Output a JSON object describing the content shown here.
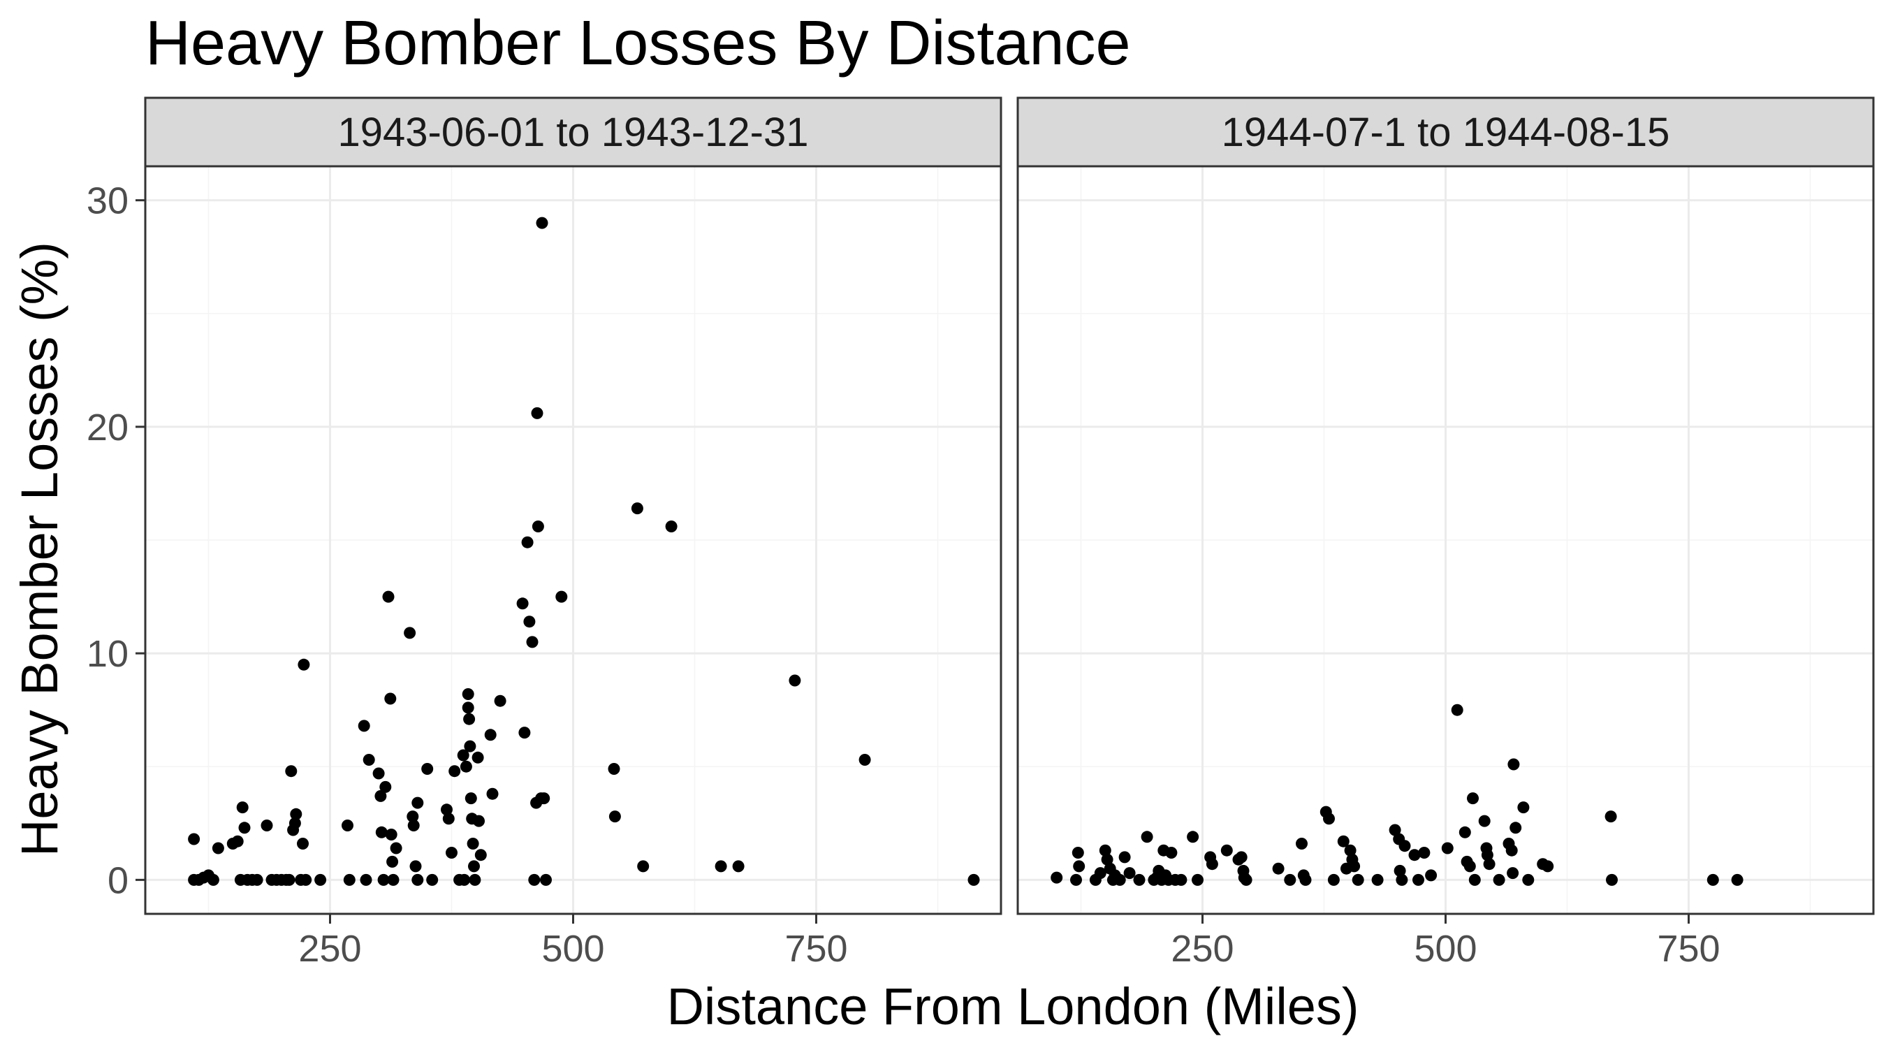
{
  "chart_data": {
    "type": "scatter",
    "title": "Heavy Bomber Losses By Distance",
    "xlabel": "Distance From London (Miles)",
    "ylabel": "Heavy Bomber Losses (%)",
    "xlim": [
      60,
      940
    ],
    "ylim": [
      -1.5,
      31.5
    ],
    "x_ticks": [
      250,
      500,
      750
    ],
    "y_ticks": [
      0,
      10,
      20,
      30
    ],
    "grid": true,
    "point_color": "#000000",
    "panels": [
      {
        "label": "1943-06-01 to 1943-12-31",
        "points": [
          [
            110,
            1.8
          ],
          [
            110,
            0
          ],
          [
            115,
            0
          ],
          [
            120,
            0.1
          ],
          [
            125,
            0.2
          ],
          [
            130,
            0
          ],
          [
            135,
            1.4
          ],
          [
            150,
            1.6
          ],
          [
            155,
            1.7
          ],
          [
            158,
            0
          ],
          [
            160,
            3.2
          ],
          [
            162,
            2.3
          ],
          [
            165,
            0
          ],
          [
            170,
            0
          ],
          [
            175,
            0
          ],
          [
            185,
            2.4
          ],
          [
            190,
            0
          ],
          [
            195,
            0
          ],
          [
            200,
            0
          ],
          [
            205,
            0
          ],
          [
            208,
            0
          ],
          [
            210,
            4.8
          ],
          [
            212,
            2.2
          ],
          [
            214,
            2.5
          ],
          [
            215,
            2.9
          ],
          [
            220,
            0
          ],
          [
            222,
            1.6
          ],
          [
            223,
            9.5
          ],
          [
            225,
            0
          ],
          [
            240,
            0
          ],
          [
            268,
            2.4
          ],
          [
            270,
            0
          ],
          [
            285,
            6.8
          ],
          [
            287,
            0
          ],
          [
            290,
            5.3
          ],
          [
            300,
            4.7
          ],
          [
            302,
            3.7
          ],
          [
            303,
            2.1
          ],
          [
            305,
            0
          ],
          [
            307,
            4.1
          ],
          [
            310,
            12.5
          ],
          [
            312,
            8.0
          ],
          [
            313,
            2.0
          ],
          [
            314,
            0.8
          ],
          [
            315,
            0
          ],
          [
            318,
            1.4
          ],
          [
            332,
            10.9
          ],
          [
            335,
            2.8
          ],
          [
            336,
            2.4
          ],
          [
            338,
            0.6
          ],
          [
            340,
            3.4
          ],
          [
            340,
            0
          ],
          [
            350,
            4.9
          ],
          [
            355,
            0
          ],
          [
            370,
            3.1
          ],
          [
            372,
            2.7
          ],
          [
            375,
            1.2
          ],
          [
            378,
            4.8
          ],
          [
            383,
            0
          ],
          [
            387,
            5.5
          ],
          [
            388,
            0
          ],
          [
            390,
            5.0
          ],
          [
            392,
            8.2
          ],
          [
            392,
            7.6
          ],
          [
            393,
            7.1
          ],
          [
            394,
            5.9
          ],
          [
            395,
            3.6
          ],
          [
            396,
            2.7
          ],
          [
            397,
            1.6
          ],
          [
            398,
            0.6
          ],
          [
            399,
            0
          ],
          [
            402,
            5.4
          ],
          [
            403,
            2.6
          ],
          [
            405,
            1.1
          ],
          [
            415,
            6.4
          ],
          [
            417,
            3.8
          ],
          [
            425,
            7.9
          ],
          [
            448,
            12.2
          ],
          [
            450,
            6.5
          ],
          [
            453,
            14.9
          ],
          [
            455,
            11.4
          ],
          [
            458,
            10.5
          ],
          [
            460,
            0
          ],
          [
            462,
            3.4
          ],
          [
            463,
            20.6
          ],
          [
            464,
            15.6
          ],
          [
            467,
            3.6
          ],
          [
            468,
            29.0
          ],
          [
            470,
            3.6
          ],
          [
            472,
            0
          ],
          [
            488,
            12.5
          ],
          [
            542,
            4.9
          ],
          [
            543,
            2.8
          ],
          [
            566,
            16.4
          ],
          [
            572,
            0.6
          ],
          [
            601,
            15.6
          ],
          [
            652,
            0.6
          ],
          [
            670,
            0.6
          ],
          [
            728,
            8.8
          ],
          [
            800,
            5.3
          ],
          [
            912,
            0
          ]
        ]
      },
      {
        "label": "1944-07-1 to 1944-08-15",
        "points": [
          [
            100,
            0.1
          ],
          [
            120,
            0
          ],
          [
            122,
            1.2
          ],
          [
            123,
            0.6
          ],
          [
            140,
            0
          ],
          [
            145,
            0.3
          ],
          [
            150,
            1.3
          ],
          [
            152,
            0.9
          ],
          [
            155,
            0.5
          ],
          [
            158,
            0
          ],
          [
            160,
            0.2
          ],
          [
            165,
            0
          ],
          [
            170,
            1.0
          ],
          [
            175,
            0.3
          ],
          [
            185,
            0
          ],
          [
            193,
            1.9
          ],
          [
            200,
            0
          ],
          [
            203,
            0.1
          ],
          [
            205,
            0.4
          ],
          [
            208,
            0
          ],
          [
            210,
            1.3
          ],
          [
            212,
            0.2
          ],
          [
            215,
            0
          ],
          [
            218,
            1.2
          ],
          [
            222,
            0
          ],
          [
            228,
            0
          ],
          [
            240,
            1.9
          ],
          [
            245,
            0
          ],
          [
            258,
            1.0
          ],
          [
            260,
            0.7
          ],
          [
            275,
            1.3
          ],
          [
            287,
            0.9
          ],
          [
            290,
            1.0
          ],
          [
            292,
            0.4
          ],
          [
            293,
            0.1
          ],
          [
            295,
            0
          ],
          [
            328,
            0.5
          ],
          [
            340,
            0
          ],
          [
            352,
            1.6
          ],
          [
            354,
            0.2
          ],
          [
            356,
            0
          ],
          [
            377,
            3.0
          ],
          [
            380,
            2.7
          ],
          [
            385,
            0
          ],
          [
            395,
            1.7
          ],
          [
            398,
            0.5
          ],
          [
            402,
            1.3
          ],
          [
            404,
            0.9
          ],
          [
            406,
            0.6
          ],
          [
            410,
            0
          ],
          [
            430,
            0
          ],
          [
            448,
            2.2
          ],
          [
            452,
            1.8
          ],
          [
            453,
            0.4
          ],
          [
            455,
            0
          ],
          [
            458,
            1.5
          ],
          [
            468,
            1.1
          ],
          [
            472,
            0
          ],
          [
            478,
            1.2
          ],
          [
            485,
            0.2
          ],
          [
            502,
            1.4
          ],
          [
            512,
            7.5
          ],
          [
            520,
            2.1
          ],
          [
            522,
            0.8
          ],
          [
            525,
            0.6
          ],
          [
            528,
            3.6
          ],
          [
            530,
            0
          ],
          [
            540,
            2.6
          ],
          [
            542,
            1.4
          ],
          [
            543,
            1.1
          ],
          [
            545,
            0.7
          ],
          [
            555,
            0
          ],
          [
            565,
            1.6
          ],
          [
            568,
            1.3
          ],
          [
            569,
            0.3
          ],
          [
            570,
            5.1
          ],
          [
            572,
            2.3
          ],
          [
            580,
            3.2
          ],
          [
            585,
            0
          ],
          [
            600,
            0.7
          ],
          [
            605,
            0.6
          ],
          [
            670,
            2.8
          ],
          [
            671,
            0
          ],
          [
            775,
            0
          ],
          [
            800,
            0
          ]
        ]
      }
    ]
  }
}
